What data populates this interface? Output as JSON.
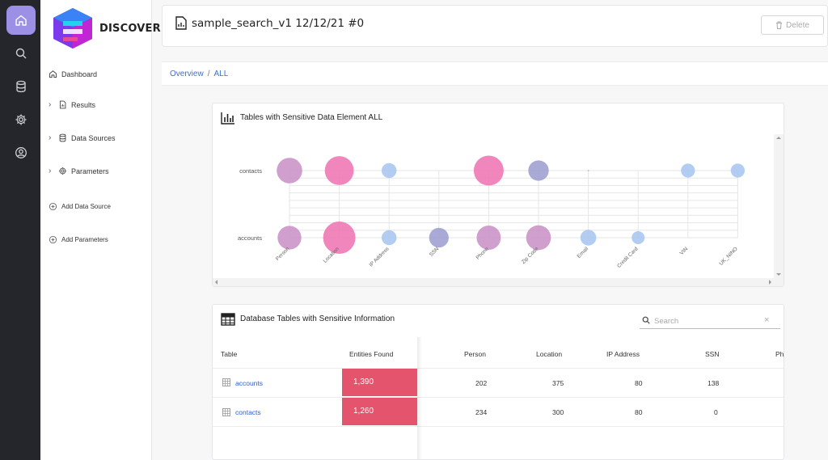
{
  "app": {
    "name": "DISCOVER"
  },
  "nav": {
    "dashboard": "Dashboard",
    "results": "Results",
    "data_sources": "Data Sources",
    "parameters": "Parameters",
    "add_data_source": "Add Data Source",
    "add_parameters": "Add Parameters"
  },
  "header": {
    "title": "sample_search_v1 12/12/21 #0",
    "delete_label": "Delete"
  },
  "breadcrumb": {
    "overview": "Overview",
    "sep": "/",
    "current": "ALL"
  },
  "chart_card": {
    "title": "Tables with Sensitive Data Element ALL"
  },
  "chart_data": {
    "type": "scatter",
    "x_categories": [
      "Person",
      "Location",
      "IP Address",
      "SSN",
      "Phone",
      "Zip Code",
      "Email",
      "Credit Card",
      "VIN",
      "UK_NINO"
    ],
    "y_categories": [
      "contacts",
      "accounts"
    ],
    "series": [
      {
        "values": [
          {
            "x": "Person",
            "y": "contacts",
            "size": 234
          },
          {
            "x": "Location",
            "y": "contacts",
            "size": 300
          },
          {
            "x": "IP Address",
            "y": "contacts",
            "size": 80
          },
          {
            "x": "Phone",
            "y": "contacts",
            "size": 320
          },
          {
            "x": "Zip Code",
            "y": "contacts",
            "size": 150
          },
          {
            "x": "Email",
            "y": "contacts",
            "size": 0
          },
          {
            "x": "VIN",
            "y": "contacts",
            "size": 70
          },
          {
            "x": "UK_NINO",
            "y": "contacts",
            "size": 70
          },
          {
            "x": "Person",
            "y": "accounts",
            "size": 202
          },
          {
            "x": "Location",
            "y": "accounts",
            "size": 375
          },
          {
            "x": "IP Address",
            "y": "accounts",
            "size": 80
          },
          {
            "x": "SSN",
            "y": "accounts",
            "size": 138
          },
          {
            "x": "Phone",
            "y": "accounts",
            "size": 210
          },
          {
            "x": "Zip Code",
            "y": "accounts",
            "size": 220
          },
          {
            "x": "Email",
            "y": "accounts",
            "size": 90
          },
          {
            "x": "Credit Card",
            "y": "accounts",
            "size": 60
          }
        ]
      }
    ],
    "grid": true
  },
  "table_card": {
    "title": "Database Tables with Sensitive Information",
    "search_placeholder": "Search",
    "clear": "×"
  },
  "table": {
    "headers": {
      "table": "Table",
      "entities": "Entities Found",
      "person": "Person",
      "location": "Location",
      "ip": "IP Address",
      "ssn": "SSN",
      "ph": "Ph"
    },
    "rows": [
      {
        "table": "accounts",
        "entities": "1,390",
        "person": "202",
        "location": "375",
        "ip": "80",
        "ssn": "138"
      },
      {
        "table": "contacts",
        "entities": "1,260",
        "person": "234",
        "location": "300",
        "ip": "80",
        "ssn": "0"
      }
    ]
  },
  "colors": {
    "accent": "#9b8fe6",
    "link": "#2f5fcf",
    "entities_cell": "#e5546d",
    "rail": "#25262b"
  }
}
